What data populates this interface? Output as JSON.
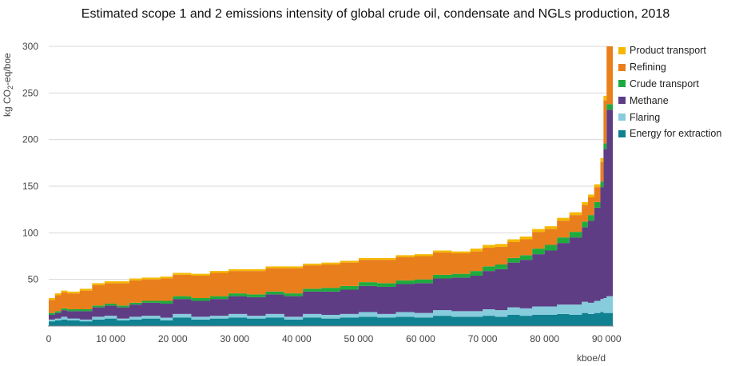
{
  "title": "Estimated scope 1 and 2 emissions intensity of global crude oil, condensate and NGLs production, 2018",
  "chart_data": {
    "type": "area",
    "subtype": "stacked step-area (variable-width cost-curve style)",
    "xlabel": "kboe/d",
    "ylabel_main": "kg CO",
    "ylabel_sub": "2",
    "ylabel_tail": "-eq/boe",
    "xlim": [
      0,
      91000
    ],
    "ylim": [
      0,
      300
    ],
    "x_ticks": [
      0,
      10000,
      20000,
      30000,
      40000,
      50000,
      60000,
      70000,
      80000,
      90000
    ],
    "x_tick_labels": [
      "0",
      "10 000",
      "20 000",
      "30 000",
      "40 000",
      "50 000",
      "60 000",
      "70 000",
      "80 000",
      "90 000"
    ],
    "y_ticks": [
      50,
      100,
      150,
      200,
      250,
      300
    ],
    "y_tick_labels": [
      "50",
      "100",
      "150",
      "200",
      "250",
      "300"
    ],
    "grid": "horizontal",
    "legend_position": "right",
    "series_order_bottom_to_top": [
      "Energy for extraction",
      "Flaring",
      "Methane",
      "Crude transport",
      "Refining",
      "Product transport"
    ],
    "series": [
      {
        "name": "Product transport",
        "color": "#F5B800"
      },
      {
        "name": "Refining",
        "color": "#E97F1C"
      },
      {
        "name": "Crude transport",
        "color": "#1FAA3F"
      },
      {
        "name": "Methane",
        "color": "#5F3D85"
      },
      {
        "name": "Flaring",
        "color": "#86CCDD"
      },
      {
        "name": "Energy for extraction",
        "color": "#0F8191"
      }
    ],
    "x": [
      0,
      1000,
      2000,
      3000,
      5000,
      7000,
      9000,
      11000,
      13000,
      15000,
      18000,
      20000,
      23000,
      26000,
      29000,
      32000,
      35000,
      38000,
      41000,
      44000,
      47000,
      50000,
      53000,
      56000,
      59000,
      62000,
      65000,
      68000,
      70000,
      72000,
      74000,
      76000,
      78000,
      80000,
      82000,
      84000,
      86000,
      87000,
      88000,
      89000,
      89500,
      90000,
      91000
    ],
    "stacks": {
      "Energy for extraction": [
        5,
        6,
        7,
        6,
        5,
        7,
        8,
        6,
        7,
        8,
        6,
        9,
        7,
        8,
        9,
        8,
        9,
        7,
        9,
        8,
        9,
        10,
        9,
        10,
        9,
        11,
        10,
        10,
        11,
        10,
        12,
        11,
        12,
        12,
        13,
        12,
        14,
        13,
        14,
        15,
        14,
        14,
        14
      ],
      "Flaring": [
        2,
        2,
        3,
        2,
        2,
        3,
        3,
        2,
        3,
        3,
        3,
        4,
        3,
        3,
        4,
        3,
        4,
        3,
        4,
        4,
        4,
        5,
        4,
        5,
        5,
        6,
        6,
        6,
        7,
        7,
        8,
        8,
        9,
        9,
        10,
        11,
        12,
        12,
        13,
        14,
        16,
        18,
        18
      ],
      "Methane": [
        5,
        6,
        7,
        8,
        9,
        10,
        11,
        12,
        13,
        14,
        15,
        16,
        17,
        18,
        19,
        20,
        21,
        22,
        24,
        25,
        26,
        28,
        29,
        30,
        32,
        34,
        36,
        38,
        41,
        44,
        48,
        52,
        56,
        60,
        66,
        72,
        80,
        88,
        100,
        120,
        160,
        200,
        200
      ],
      "Crude transport": [
        2,
        2,
        2,
        2,
        2,
        2,
        2,
        2,
        2,
        2,
        3,
        3,
        3,
        3,
        3,
        3,
        3,
        3,
        3,
        4,
        4,
        4,
        4,
        4,
        4,
        4,
        4,
        5,
        5,
        5,
        5,
        5,
        6,
        6,
        6,
        6,
        6,
        6,
        6,
        6,
        6,
        6,
        6
      ],
      "Refining": [
        14,
        17,
        17,
        17,
        20,
        22,
        22,
        24,
        24,
        23,
        24,
        23,
        24,
        25,
        24,
        25,
        25,
        27,
        25,
        25,
        25,
        24,
        25,
        25,
        25,
        24,
        22,
        21,
        20,
        19,
        17,
        17,
        18,
        17,
        18,
        18,
        18,
        19,
        16,
        21,
        46,
        62,
        62
      ],
      "Product transport": [
        2,
        2,
        2,
        2,
        2,
        2,
        2,
        2,
        2,
        2,
        2,
        2,
        2,
        2,
        2,
        2,
        2,
        2,
        2,
        2,
        2,
        2,
        2,
        2,
        2,
        2,
        2,
        3,
        3,
        3,
        3,
        3,
        3,
        3,
        3,
        3,
        3,
        3,
        3,
        4,
        5,
        6,
        6
      ]
    }
  }
}
